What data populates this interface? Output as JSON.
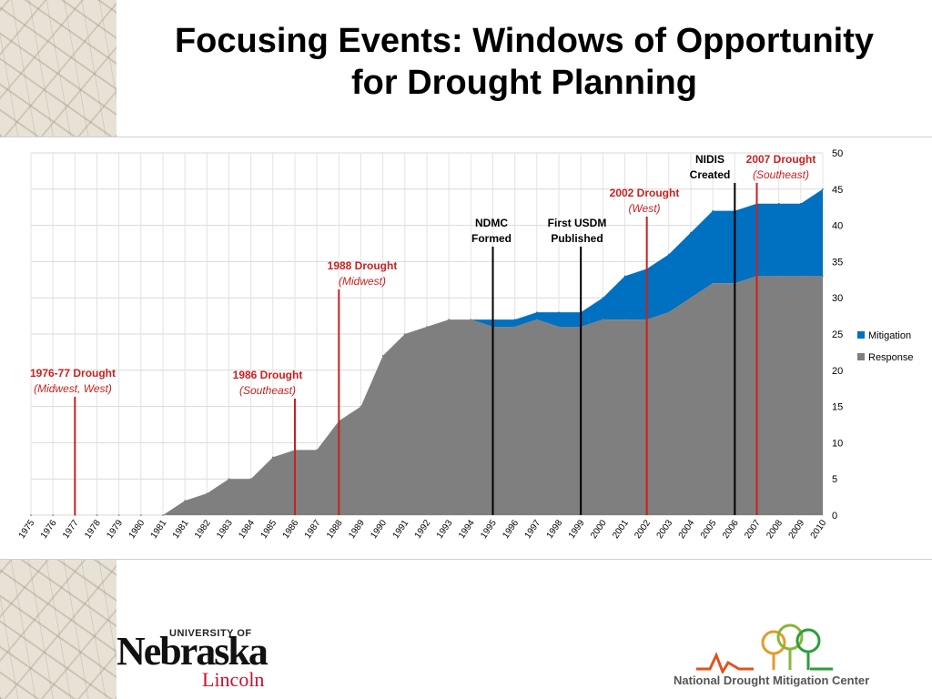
{
  "slide": {
    "title_line1": "Focusing Events: Windows of Opportunity",
    "title_line2": "for Drought Planning"
  },
  "chart_data": {
    "type": "area",
    "title": "",
    "xlabel": "",
    "ylabel": "",
    "stacked": true,
    "x": [
      "1975",
      "1976",
      "1977",
      "1978",
      "1979",
      "1980",
      "1981",
      "1981",
      "1982",
      "1983",
      "1984",
      "1985",
      "1986",
      "1987",
      "1988",
      "1989",
      "1990",
      "1991",
      "1992",
      "1993",
      "1994",
      "1995",
      "1996",
      "1997",
      "1998",
      "1999",
      "2000",
      "2001",
      "2002",
      "2003",
      "2004",
      "2005",
      "2006",
      "2007",
      "2008",
      "2009",
      "2010"
    ],
    "series": [
      {
        "name": "Response",
        "color": "#7f7f7f",
        "values": [
          0,
          0,
          0,
          0,
          0,
          0,
          0,
          2,
          3,
          5,
          5,
          8,
          9,
          9,
          13,
          15,
          22,
          25,
          26,
          27,
          27,
          26,
          26,
          27,
          26,
          26,
          27,
          27,
          27,
          28,
          30,
          32,
          32,
          33,
          33,
          33,
          33
        ]
      },
      {
        "name": "Mitigation",
        "color": "#0070c0",
        "values": [
          0,
          0,
          0,
          0,
          0,
          0,
          0,
          0,
          0,
          0,
          0,
          0,
          0,
          0,
          0,
          0,
          0,
          0,
          0,
          0,
          0,
          1,
          1,
          1,
          2,
          2,
          3,
          6,
          7,
          8,
          9,
          10,
          10,
          10,
          10,
          10,
          12
        ]
      }
    ],
    "ylim": [
      0,
      50
    ],
    "yticks": [
      0,
      5,
      10,
      15,
      20,
      25,
      30,
      35,
      40,
      45,
      50
    ],
    "y_axis_side": "right",
    "grid": true,
    "legend": "right",
    "events": [
      {
        "year": "1977",
        "line1": "1976-77 Drought",
        "line2": "Midwest, West",
        "color": "red"
      },
      {
        "year": "1986",
        "line1": "1986 Drought",
        "line2": "Southeast",
        "color": "red"
      },
      {
        "year": "1988",
        "line1": "1988 Drought",
        "line2": "Midwest",
        "color": "red"
      },
      {
        "year": "1995",
        "line1": "NDMC",
        "line2": "Formed",
        "color": "black"
      },
      {
        "year": "1999",
        "line1": "First USDM",
        "line2": "Published",
        "color": "black"
      },
      {
        "year": "2002",
        "line1": "2002 Drought",
        "line2": "West",
        "color": "red"
      },
      {
        "year": "2006",
        "line1": "NIDIS",
        "line2": "Created",
        "color": "black"
      },
      {
        "year": "2007",
        "line1": "2007 Drought",
        "line2": "Southeast",
        "color": "red"
      }
    ]
  },
  "logos": {
    "unl_university": "UNIVERSITY OF",
    "unl_name": "Nebraska",
    "unl_city": "Lincoln",
    "ndmc_name": "National Drought Mitigation Center"
  }
}
